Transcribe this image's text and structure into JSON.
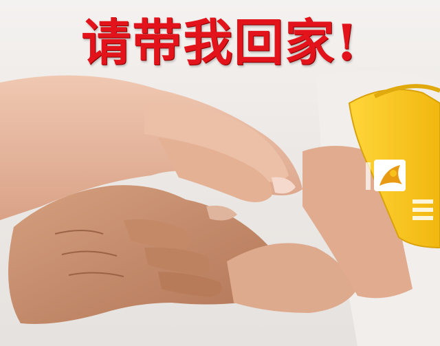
{
  "headline": {
    "text": "请带我回家!",
    "color": "#e3131b"
  },
  "wristband": {
    "color": "#f8c21c",
    "logo_color": "#e89a12"
  },
  "skin_tones": {
    "young_hand": "#e7b79f",
    "old_hand": "#c78f6d"
  }
}
